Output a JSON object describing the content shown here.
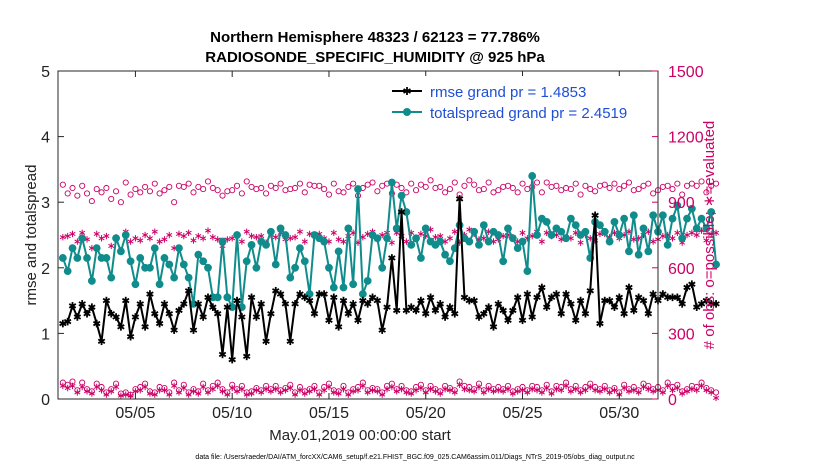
{
  "chart_data": {
    "type": "line",
    "title_line1": "Northern Hemisphere 48323 / 62123 = 77.786%",
    "title_line2": "RADIOSONDE_SPECIFIC_HUMIDITY @ 925 hPa",
    "xlabel": "May.01,2019 00:00:00 start",
    "ylabel": "rmse and totalspread",
    "ylabel_right": "# of obs: o=possible; ∗=evaluated",
    "footnote": "data file: /Users/raeder/DAI/ATM_forcXX/CAM6_setup/f.e21.FHIST_BGC.f09_025.CAM6assim.011/Diags_NTrS_2019-05/obs_diag_output.nc",
    "xlim": [
      1,
      32
    ],
    "ylim": [
      0,
      5
    ],
    "ylim_right": [
      0,
      1500
    ],
    "xticks": [
      5,
      10,
      15,
      20,
      25,
      30
    ],
    "xticklabels": [
      "05/05",
      "05/10",
      "05/15",
      "05/20",
      "05/25",
      "05/30"
    ],
    "yticks": [
      0,
      1,
      2,
      3,
      4,
      5
    ],
    "yticklabels": [
      "0",
      "1",
      "2",
      "3",
      "4",
      "5"
    ],
    "yticks_right": [
      0,
      300,
      600,
      900,
      1200,
      1500
    ],
    "yticklabels_right": [
      "0",
      "300",
      "600",
      "900",
      "1200",
      "1500"
    ],
    "colors": {
      "rmse": "#000000",
      "spread": "#108c8c",
      "obs": "#cc0066",
      "legend_text": "#1f4fd6"
    },
    "legend": [
      {
        "label": "rmse grand pr = 1.4853",
        "color": "#000000",
        "marker": "asterisk"
      },
      {
        "label": "totalspread grand pr = 2.4519",
        "color": "#108c8c",
        "marker": "circle"
      }
    ],
    "x_start": 1.25,
    "x_step": 0.25,
    "series": [
      {
        "name": "rmse",
        "values": [
          1.15,
          1.18,
          1.42,
          1.25,
          1.45,
          1.3,
          1.4,
          1.15,
          0.88,
          1.5,
          1.3,
          1.25,
          1.1,
          1.5,
          0.95,
          1.25,
          1.45,
          1.1,
          1.6,
          1.3,
          1.15,
          1.45,
          1.3,
          1.05,
          1.35,
          1.45,
          1.65,
          1.05,
          1.45,
          1.25,
          1.55,
          1.4,
          1.3,
          0.68,
          1.4,
          0.6,
          1.5,
          1.25,
          0.65,
          1.55,
          1.25,
          1.45,
          0.88,
          1.3,
          1.65,
          1.6,
          1.45,
          0.88,
          1.45,
          1.6,
          1.55,
          1.5,
          1.3,
          1.6,
          1.6,
          1.2,
          1.55,
          1.1,
          1.5,
          1.3,
          1.45,
          1.2,
          1.5,
          1.45,
          1.55,
          1.5,
          1.05,
          1.4,
          2.15,
          1.35,
          2.85,
          1.35,
          1.4,
          1.35,
          1.5,
          1.3,
          1.55,
          1.35,
          1.45,
          1.25,
          1.4,
          1.3,
          3.05,
          1.55,
          1.5,
          1.5,
          1.25,
          1.3,
          1.4,
          1.1,
          1.45,
          1.35,
          1.2,
          1.35,
          1.55,
          1.2,
          1.6,
          1.25,
          1.55,
          1.7,
          1.4,
          1.55,
          1.6,
          1.3,
          1.6,
          1.45,
          1.2,
          1.5,
          1.3,
          1.65,
          2.8,
          1.15,
          1.5,
          1.5,
          1.4,
          1.55,
          1.3,
          1.7,
          1.35,
          1.55,
          1.5,
          1.3,
          1.6,
          1.5,
          1.6,
          1.55,
          1.55,
          1.55,
          1.45,
          1.7,
          1.75,
          1.4,
          1.45,
          1.5,
          1.45,
          1.45
        ]
      },
      {
        "name": "totalspread",
        "values": [
          2.15,
          1.95,
          2.3,
          2.15,
          2.45,
          2.15,
          1.8,
          2.3,
          2.15,
          2.15,
          1.85,
          2.45,
          2.25,
          2.5,
          2.1,
          1.75,
          2.15,
          2.0,
          2.0,
          2.3,
          1.75,
          2.15,
          2.05,
          1.85,
          2.3,
          2.05,
          1.85,
          1.45,
          2.2,
          2.1,
          2.0,
          1.55,
          1.55,
          2.4,
          1.55,
          1.4,
          2.5,
          1.4,
          2.1,
          2.35,
          2.0,
          2.4,
          2.35,
          2.55,
          2.05,
          2.6,
          2.5,
          1.85,
          2.0,
          2.3,
          2.1,
          1.6,
          2.5,
          2.45,
          2.4,
          2.0,
          1.7,
          2.25,
          1.7,
          2.6,
          1.75,
          3.2,
          1.6,
          1.8,
          2.5,
          2.45,
          2.0,
          2.45,
          3.3,
          2.6,
          3.1,
          2.85,
          2.35,
          2.45,
          2.15,
          2.6,
          2.4,
          2.35,
          2.4,
          2.2,
          2.1,
          2.3,
          2.65,
          2.45,
          2.4,
          2.55,
          2.35,
          2.65,
          2.4,
          2.55,
          2.5,
          2.1,
          2.6,
          2.45,
          2.3,
          2.4,
          1.95,
          3.4,
          2.5,
          2.75,
          2.7,
          2.5,
          2.6,
          2.55,
          2.45,
          2.75,
          2.65,
          2.5,
          2.55,
          2.15,
          2.7,
          2.65,
          2.55,
          2.4,
          2.7,
          2.5,
          2.75,
          2.25,
          2.8,
          2.2,
          2.6,
          2.25,
          2.8,
          2.55,
          2.8,
          2.35,
          2.75,
          2.95,
          2.45,
          2.75,
          2.9,
          2.6,
          2.75,
          2.6,
          2.85,
          2.05
        ]
      },
      {
        "name": "obs_possible",
        "values": [
          980,
          940,
          965,
          930,
          975,
          940,
          905,
          960,
          945,
          965,
          915,
          950,
          900,
          990,
          935,
          960,
          945,
          970,
          950,
          985,
          940,
          955,
          970,
          900,
          975,
          970,
          985,
          945,
          970,
          960,
          995,
          965,
          955,
          930,
          950,
          955,
          975,
          940,
          995,
          970,
          960,
          965,
          940,
          975,
          965,
          985,
          955,
          960,
          965,
          985,
          945,
          980,
          975,
          975,
          960,
          935,
          985,
          950,
          945,
          970,
          985,
          930,
          965,
          980,
          990,
          950,
          975,
          985,
          940,
          980,
          965,
          945,
          985,
          955,
          980,
          970,
          1000,
          965,
          970,
          945,
          960,
          990,
          935,
          975,
          1000,
          980,
          955,
          960,
          990,
          945,
          955,
          970,
          975,
          965,
          945,
          985,
          960,
          970,
          990,
          945,
          990,
          970,
          975,
          955,
          965,
          960,
          985,
          935,
          975,
          960,
          950,
          975,
          980,
          965,
          985,
          960,
          975,
          990,
          955,
          960,
          975,
          985,
          940,
          955,
          970,
          975,
          960,
          985,
          935,
          975,
          985,
          975,
          995,
          945,
          975,
          985
        ]
      },
      {
        "name": "obs_evaluated",
        "values": [
          740,
          745,
          755,
          720,
          760,
          730,
          690,
          755,
          735,
          745,
          700,
          740,
          680,
          765,
          720,
          735,
          725,
          750,
          735,
          765,
          720,
          730,
          750,
          690,
          755,
          745,
          760,
          725,
          745,
          735,
          770,
          740,
          730,
          700,
          730,
          735,
          750,
          720,
          765,
          745,
          740,
          745,
          715,
          750,
          740,
          760,
          730,
          735,
          740,
          765,
          720,
          755,
          750,
          755,
          735,
          720,
          760,
          730,
          720,
          745,
          760,
          715,
          740,
          755,
          765,
          730,
          750,
          760,
          715,
          760,
          745,
          720,
          760,
          730,
          755,
          745,
          775,
          740,
          745,
          720,
          735,
          765,
          715,
          750,
          775,
          755,
          730,
          735,
          765,
          720,
          730,
          745,
          750,
          740,
          720,
          760,
          735,
          745,
          765,
          720,
          760,
          745,
          750,
          730,
          740,
          735,
          760,
          715,
          750,
          735,
          725,
          755,
          755,
          740,
          760,
          735,
          750,
          765,
          730,
          735,
          750,
          765,
          720,
          730,
          745,
          750,
          735,
          760,
          715,
          750,
          760,
          750,
          770,
          725,
          755,
          760
        ]
      },
      {
        "name": "obs_possible_low",
        "values": [
          75,
          65,
          80,
          40,
          75,
          45,
          35,
          70,
          55,
          30,
          45,
          70,
          25,
          30,
          20,
          45,
          55,
          70,
          35,
          30,
          55,
          50,
          30,
          75,
          40,
          65,
          30,
          45,
          35,
          70,
          40,
          60,
          75,
          45,
          30,
          65,
          45,
          60,
          30,
          35,
          50,
          40,
          60,
          45,
          60,
          40,
          50,
          65,
          30,
          55,
          35,
          45,
          60,
          30,
          55,
          70,
          40,
          35,
          60,
          30,
          45,
          55,
          75,
          40,
          50,
          45,
          30,
          60,
          70,
          45,
          60,
          40,
          35,
          55,
          65,
          40,
          60,
          45,
          35,
          60,
          50,
          40,
          80,
          60,
          55,
          45,
          70,
          40,
          60,
          45,
          55,
          45,
          60,
          35,
          45,
          55,
          40,
          60,
          55,
          40,
          65,
          35,
          60,
          55,
          75,
          45,
          60,
          40,
          55,
          70,
          55,
          45,
          60,
          40,
          50,
          30,
          65,
          45,
          55,
          40,
          70,
          60,
          45,
          55,
          40,
          75,
          55,
          65,
          35,
          45,
          60,
          55,
          75,
          50,
          40,
          30
        ]
      },
      {
        "name": "obs_evaluated_low",
        "values": [
          60,
          50,
          60,
          30,
          55,
          35,
          25,
          55,
          40,
          20,
          35,
          55,
          15,
          20,
          15,
          35,
          40,
          55,
          25,
          20,
          40,
          40,
          20,
          60,
          30,
          50,
          20,
          35,
          25,
          55,
          30,
          45,
          60,
          35,
          20,
          50,
          35,
          45,
          20,
          25,
          40,
          30,
          45,
          35,
          45,
          30,
          40,
          50,
          20,
          40,
          25,
          35,
          45,
          20,
          40,
          55,
          30,
          25,
          45,
          20,
          35,
          40,
          60,
          30,
          40,
          35,
          20,
          45,
          55,
          35,
          45,
          30,
          25,
          40,
          50,
          30,
          45,
          35,
          25,
          45,
          40,
          30,
          65,
          45,
          40,
          35,
          55,
          30,
          45,
          35,
          40,
          35,
          45,
          25,
          35,
          40,
          30,
          45,
          40,
          30,
          50,
          25,
          45,
          40,
          60,
          35,
          45,
          30,
          40,
          55,
          40,
          35,
          45,
          30,
          40,
          20,
          50,
          35,
          40,
          30,
          55,
          45,
          35,
          40,
          30,
          60,
          40,
          50,
          25,
          35,
          45,
          40,
          60,
          40,
          30,
          5
        ]
      }
    ]
  }
}
